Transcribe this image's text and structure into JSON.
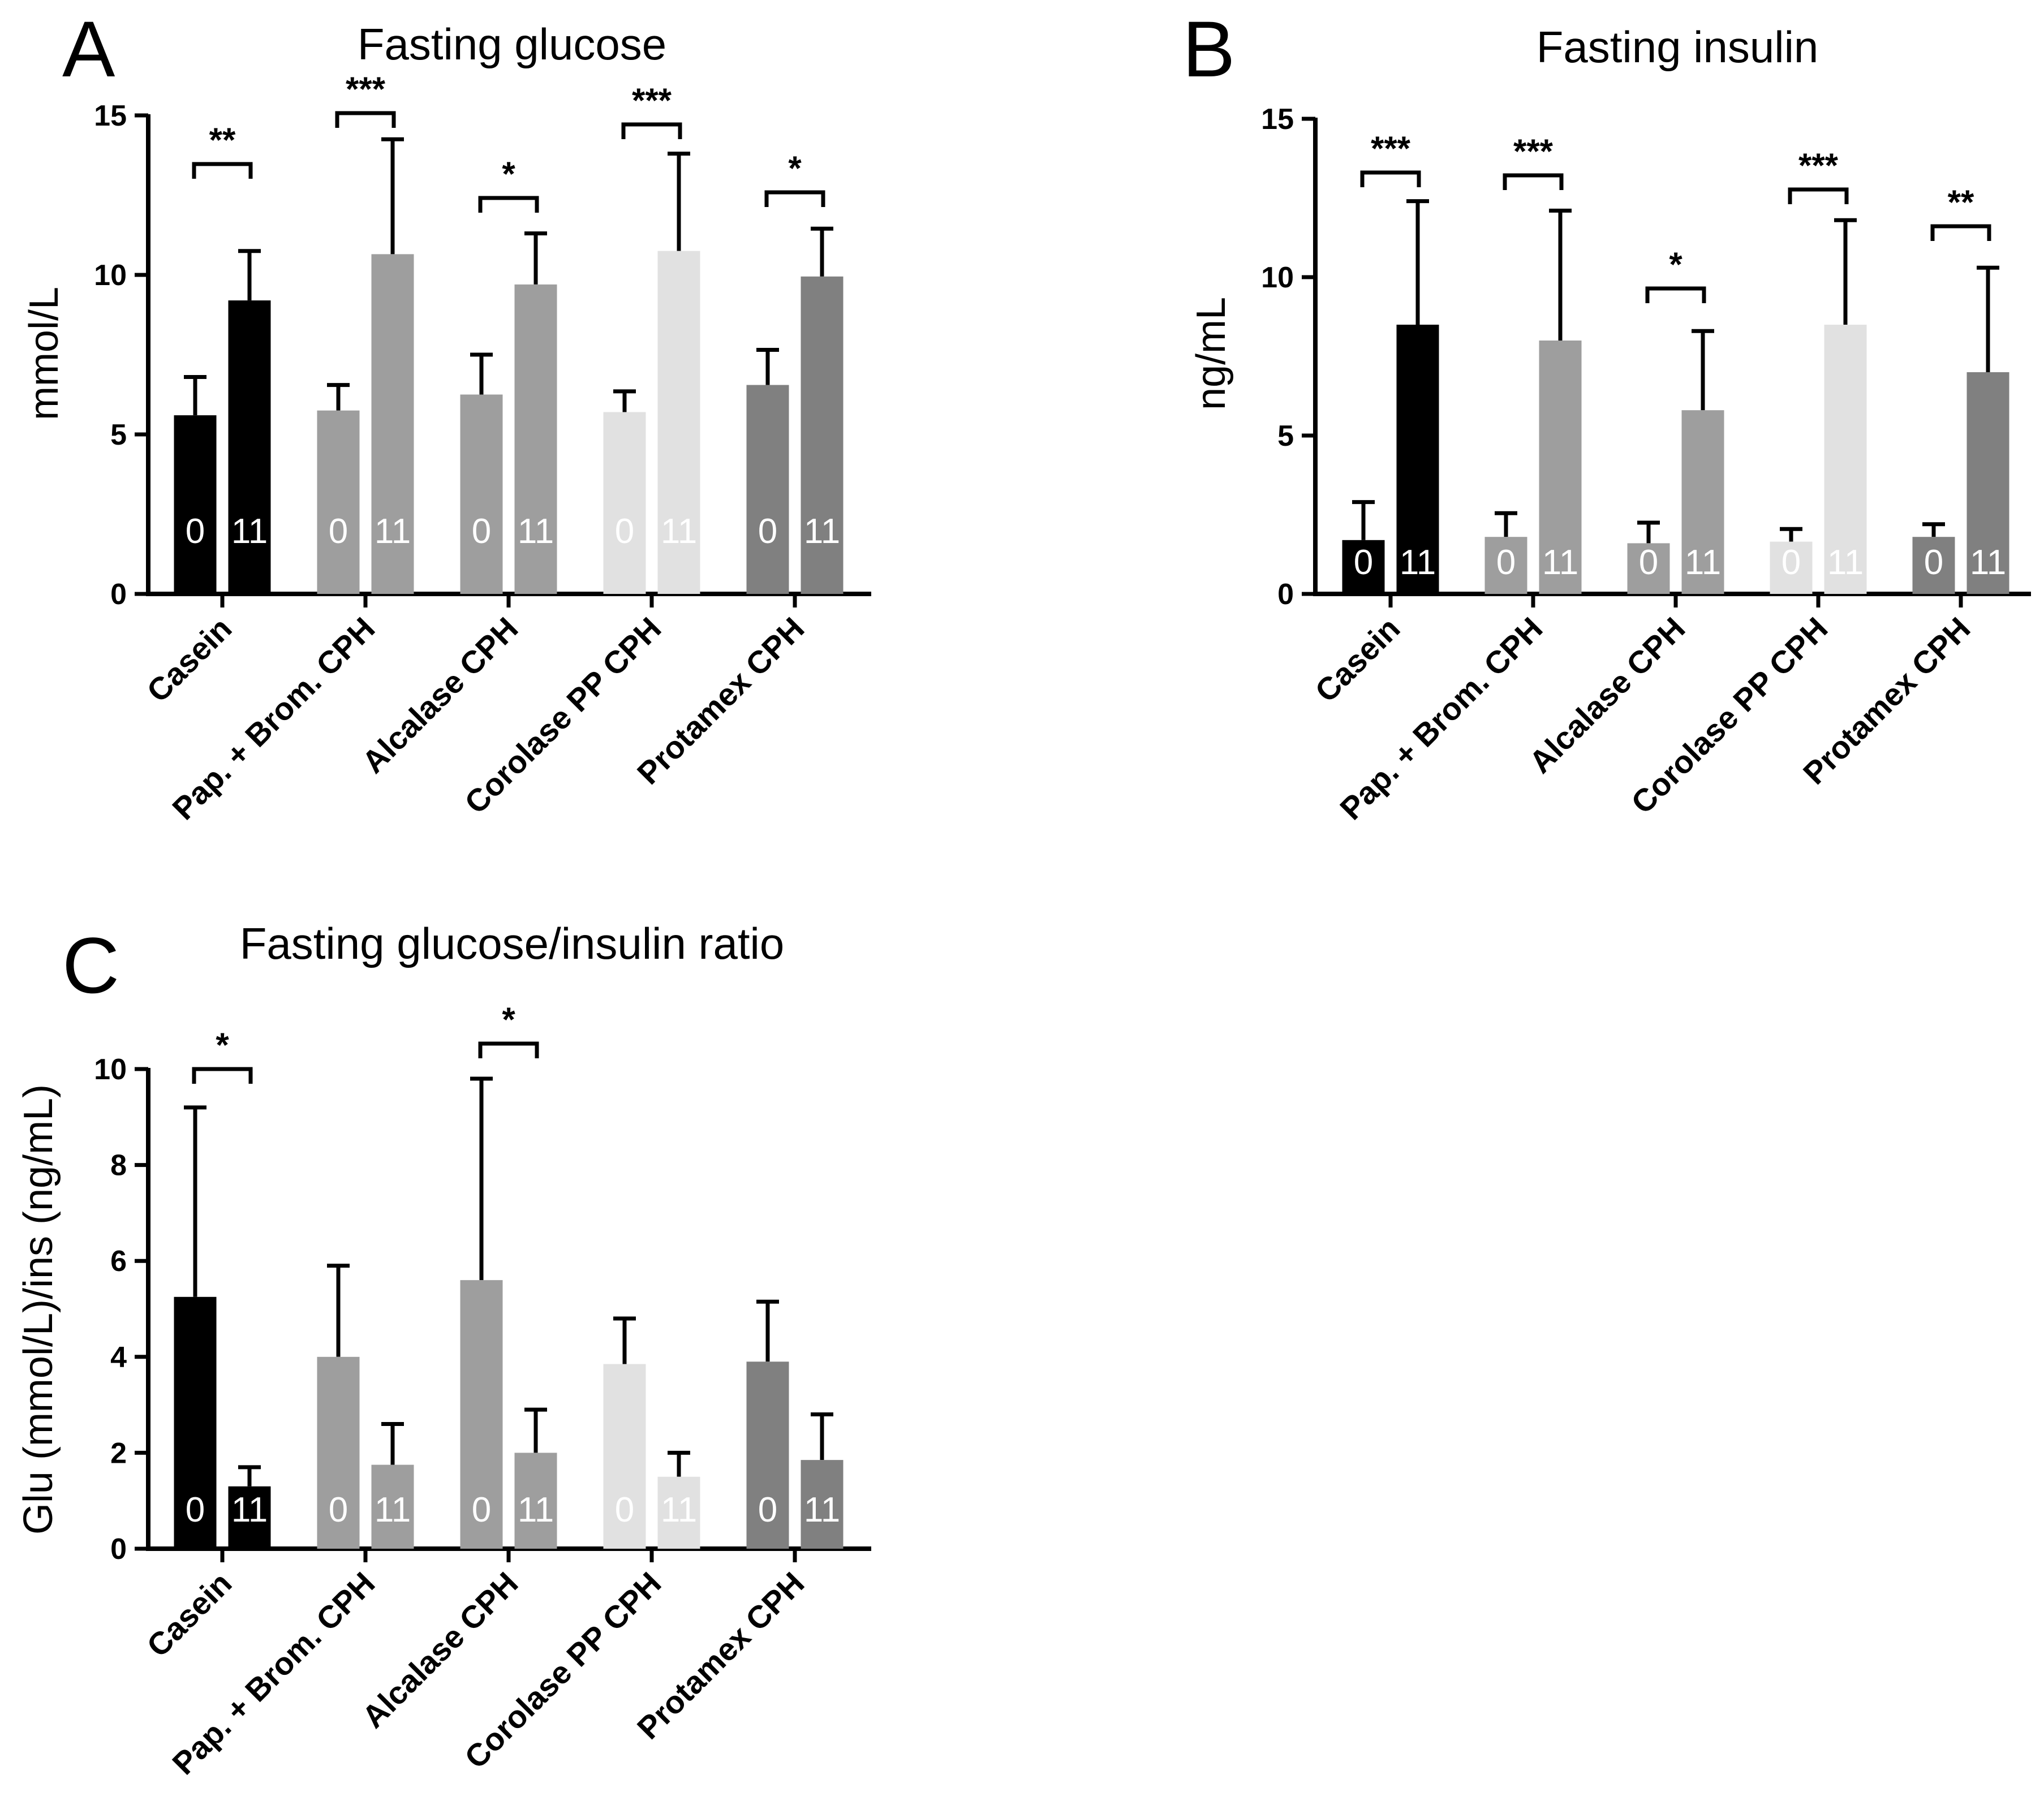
{
  "chart_data": [
    {
      "type": "bar",
      "panel": "A",
      "title": "Fasting glucose",
      "ylabel": "mmol/L",
      "xlabel": "",
      "ylim": [
        0,
        15
      ],
      "yticks": [
        0,
        5,
        10,
        15
      ],
      "categories": [
        "Casein",
        "Pap. + Brom. CPH",
        "Alcalase CPH",
        "Corolase PP CPH",
        "Protamex CPH"
      ],
      "series": [
        {
          "name": "0",
          "values": [
            5.6,
            5.75,
            6.25,
            5.7,
            6.55
          ],
          "error": [
            1.2,
            0.8,
            1.25,
            0.65,
            1.1
          ]
        },
        {
          "name": "11",
          "values": [
            9.2,
            10.65,
            9.7,
            10.75,
            9.95
          ],
          "error": [
            1.55,
            3.6,
            1.6,
            3.05,
            1.5
          ]
        }
      ],
      "significance": [
        "**",
        "***",
        "*",
        "***",
        "*"
      ],
      "colors": [
        "#000000",
        "#9e9e9e",
        "#9e9e9e",
        "#e1e1e1",
        "#808080"
      ]
    },
    {
      "type": "bar",
      "panel": "B",
      "title": "Fasting insulin",
      "ylabel": "ng/mL",
      "xlabel": "",
      "ylim": [
        0,
        15
      ],
      "yticks": [
        0,
        5,
        10,
        15
      ],
      "categories": [
        "Casein",
        "Pap. + Brom. CPH",
        "Alcalase CPH",
        "Corolase PP CPH",
        "Protamex CPH"
      ],
      "series": [
        {
          "name": "0",
          "values": [
            1.7,
            1.8,
            1.6,
            1.65,
            1.8
          ],
          "error": [
            1.2,
            0.75,
            0.65,
            0.4,
            0.4
          ]
        },
        {
          "name": "11",
          "values": [
            8.5,
            8.0,
            5.8,
            8.5,
            7.0
          ],
          "error": [
            3.9,
            4.1,
            2.5,
            3.3,
            3.3
          ]
        }
      ],
      "significance": [
        "***",
        "***",
        "*",
        "***",
        "**"
      ],
      "colors": [
        "#000000",
        "#9e9e9e",
        "#9e9e9e",
        "#e1e1e1",
        "#808080"
      ]
    },
    {
      "type": "bar",
      "panel": "C",
      "title": "Fasting glucose/insulin ratio",
      "ylabel": "Glu (mmol/L)/ins (ng/mL)",
      "xlabel": "",
      "ylim": [
        0,
        10
      ],
      "yticks": [
        0,
        2,
        4,
        6,
        8,
        10
      ],
      "categories": [
        "Casein",
        "Pap. + Brom. CPH",
        "Alcalase CPH",
        "Corolase PP CPH",
        "Protamex CPH"
      ],
      "series": [
        {
          "name": "0",
          "values": [
            5.25,
            4.0,
            5.6,
            3.85,
            3.9
          ],
          "error": [
            3.95,
            1.9,
            4.2,
            0.95,
            1.25
          ]
        },
        {
          "name": "11",
          "values": [
            1.3,
            1.75,
            2.0,
            1.5,
            1.85
          ],
          "error": [
            0.4,
            0.85,
            0.9,
            0.5,
            0.95
          ]
        }
      ],
      "significance": [
        "*",
        "",
        "*",
        "",
        ""
      ],
      "colors": [
        "#000000",
        "#9e9e9e",
        "#9e9e9e",
        "#e1e1e1",
        "#808080"
      ]
    }
  ]
}
